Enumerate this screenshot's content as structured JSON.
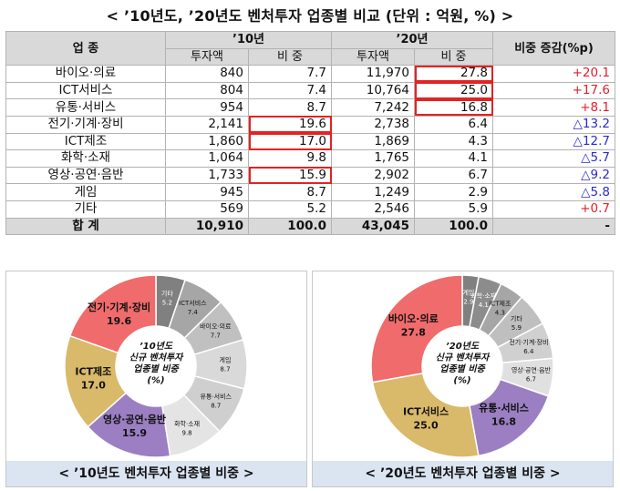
{
  "title": "< ’10년도, ’20년도 벤처투자 업종별 비교 (단위 : 억원, %) >",
  "table": {
    "header": {
      "industry": "업 종",
      "year1": "’10년",
      "year2": "’20년",
      "change": "비중 증감(%p)",
      "investment": "투자액",
      "share": "비 중"
    },
    "rows": [
      {
        "name": "바이오·의료",
        "inv10": "840",
        "share10": "7.7",
        "inv20": "11,970",
        "share20": "27.8",
        "change": "+20.1",
        "hl10": false,
        "hl20": true
      },
      {
        "name": "ICT서비스",
        "inv10": "804",
        "share10": "7.4",
        "inv20": "10,764",
        "share20": "25.0",
        "change": "+17.6",
        "hl10": false,
        "hl20": true
      },
      {
        "name": "유통·서비스",
        "inv10": "954",
        "share10": "8.7",
        "inv20": "7,242",
        "share20": "16.8",
        "change": "+8.1",
        "hl10": false,
        "hl20": true
      },
      {
        "name": "전기·기계·장비",
        "inv10": "2,141",
        "share10": "19.6",
        "inv20": "2,738",
        "share20": "6.4",
        "change": "△13.2",
        "hl10": true,
        "hl20": false
      },
      {
        "name": "ICT제조",
        "inv10": "1,860",
        "share10": "17.0",
        "inv20": "1,869",
        "share20": "4.3",
        "change": "△12.7",
        "hl10": true,
        "hl20": false
      },
      {
        "name": "화학·소재",
        "inv10": "1,064",
        "share10": "9.8",
        "inv20": "1,765",
        "share20": "4.1",
        "change": "△5.7",
        "hl10": false,
        "hl20": false
      },
      {
        "name": "영상·공연·음반",
        "inv10": "1,733",
        "share10": "15.9",
        "inv20": "2,902",
        "share20": "6.7",
        "change": "△9.2",
        "hl10": true,
        "hl20": false
      },
      {
        "name": "게임",
        "inv10": "945",
        "share10": "8.7",
        "inv20": "1,249",
        "share20": "2.9",
        "change": "△5.8",
        "hl10": false,
        "hl20": false
      },
      {
        "name": "기타",
        "inv10": "569",
        "share10": "5.2",
        "inv20": "2,546",
        "share20": "5.9",
        "change": "+0.7",
        "hl10": false,
        "hl20": false
      }
    ],
    "total": {
      "name": "합   계",
      "inv10": "10,910",
      "share10": "100.0",
      "inv20": "43,045",
      "share20": "100.0",
      "change": "-"
    }
  },
  "chart_data": [
    {
      "type": "pie",
      "center_label": [
        "’10년도",
        "신규 벤처투자",
        "업종별 비중",
        "(%)"
      ],
      "caption": "< ’10년도 벤처투자 업종별 비중 >",
      "slices": [
        {
          "name": "기타",
          "value": 5.2,
          "color": "#808080",
          "label_color": "#ffffff",
          "major": false
        },
        {
          "name": "ICT서비스",
          "value": 7.4,
          "color": "#a6a6a6",
          "label_color": "#111111",
          "major": false
        },
        {
          "name": "바이오·의료",
          "value": 7.7,
          "color": "#c0c0c0",
          "label_color": "#111111",
          "major": false
        },
        {
          "name": "게임",
          "value": 8.7,
          "color": "#d9d9d9",
          "label_color": "#111111",
          "major": false
        },
        {
          "name": "유통·서비스",
          "value": 8.7,
          "color": "#cfcfcf",
          "label_color": "#111111",
          "major": false
        },
        {
          "name": "화학·소재",
          "value": 9.8,
          "color": "#e4e4e4",
          "label_color": "#111111",
          "major": false
        },
        {
          "name": "영상·공연·음반",
          "value": 15.9,
          "color": "#9b7fc2",
          "label_color": "#111111",
          "major": true
        },
        {
          "name": "ICT제조",
          "value": 17.0,
          "color": "#d9b96a",
          "label_color": "#111111",
          "major": true
        },
        {
          "name": "전기·기계·장비",
          "value": 19.6,
          "color": "#f06b6b",
          "label_color": "#111111",
          "major": true
        }
      ]
    },
    {
      "type": "pie",
      "center_label": [
        "’20년도",
        "신규 벤처투자",
        "업종별 비중",
        "(%)"
      ],
      "caption": "< ’20년도 벤처투자 업종별 비중 >",
      "slices": [
        {
          "name": "게임",
          "value": 2.9,
          "color": "#808080",
          "label_color": "#ffffff",
          "major": false
        },
        {
          "name": "화학·소재",
          "value": 4.1,
          "color": "#8c8c8c",
          "label_color": "#ffffff",
          "major": false
        },
        {
          "name": "ICT제조",
          "value": 4.3,
          "color": "#a6a6a6",
          "label_color": "#111111",
          "major": false
        },
        {
          "name": "기타",
          "value": 5.9,
          "color": "#bfbfbf",
          "label_color": "#111111",
          "major": false
        },
        {
          "name": "전기·기계·장비",
          "value": 6.4,
          "color": "#d0d0d0",
          "label_color": "#111111",
          "major": false
        },
        {
          "name": "영상·공연·음반",
          "value": 6.7,
          "color": "#e0e0e0",
          "label_color": "#111111",
          "major": false
        },
        {
          "name": "유통·서비스",
          "value": 16.8,
          "color": "#9b7fc2",
          "label_color": "#111111",
          "major": true
        },
        {
          "name": "ICT서비스",
          "value": 25.0,
          "color": "#d9b96a",
          "label_color": "#111111",
          "major": true
        },
        {
          "name": "바이오·의료",
          "value": 27.8,
          "color": "#f06b6b",
          "label_color": "#111111",
          "major": true
        }
      ]
    }
  ]
}
